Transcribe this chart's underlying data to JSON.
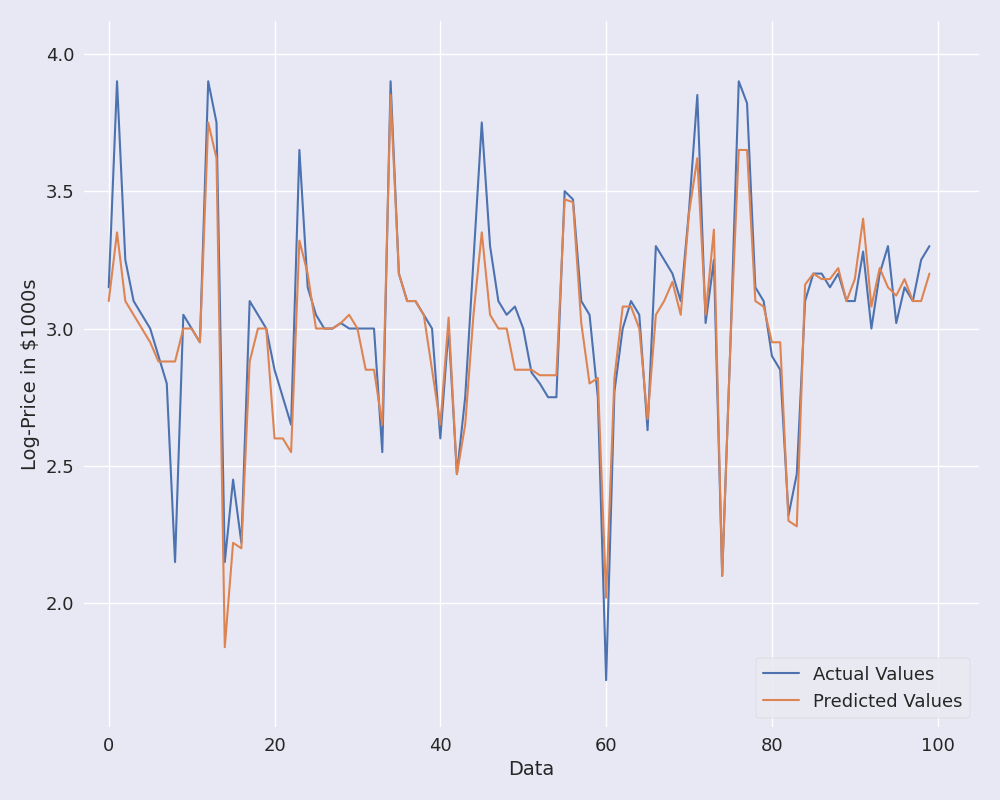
{
  "actual_values": [
    3.15,
    3.9,
    3.25,
    3.1,
    3.05,
    3.0,
    2.9,
    2.8,
    2.15,
    3.05,
    3.0,
    2.95,
    3.9,
    3.75,
    2.15,
    2.45,
    2.22,
    3.1,
    3.05,
    3.0,
    2.85,
    2.75,
    2.65,
    3.65,
    3.15,
    3.05,
    3.0,
    3.0,
    3.02,
    3.0,
    3.0,
    3.0,
    3.0,
    2.55,
    3.9,
    3.2,
    3.1,
    3.1,
    3.05,
    3.0,
    2.6,
    3.0,
    2.47,
    2.75,
    3.25,
    3.75,
    3.3,
    3.1,
    3.05,
    3.08,
    3.0,
    2.84,
    2.8,
    2.75,
    2.75,
    3.5,
    3.47,
    3.1,
    3.05,
    2.75,
    1.72,
    2.77,
    3.0,
    3.1,
    3.05,
    2.63,
    3.3,
    3.25,
    3.2,
    3.1,
    3.43,
    3.85,
    3.02,
    3.25,
    2.1,
    2.95,
    3.9,
    3.82,
    3.15,
    3.1,
    2.9,
    2.85,
    2.32,
    2.47,
    3.1,
    3.2,
    3.2,
    3.15,
    3.2,
    3.1,
    3.1,
    3.28,
    3.0,
    3.2,
    3.3,
    3.02,
    3.15,
    3.1,
    3.25,
    3.3
  ],
  "predicted_values": [
    3.1,
    3.35,
    3.1,
    3.05,
    3.0,
    2.95,
    2.88,
    2.88,
    2.88,
    3.0,
    3.0,
    2.95,
    3.75,
    3.62,
    1.84,
    2.22,
    2.2,
    2.88,
    3.0,
    3.0,
    2.6,
    2.6,
    2.55,
    3.32,
    3.2,
    3.0,
    3.0,
    3.0,
    3.02,
    3.05,
    3.0,
    2.85,
    2.85,
    2.65,
    3.85,
    3.2,
    3.1,
    3.1,
    3.05,
    2.85,
    2.65,
    3.04,
    2.47,
    2.65,
    3.05,
    3.35,
    3.05,
    3.0,
    3.0,
    2.85,
    2.85,
    2.85,
    2.83,
    2.83,
    2.83,
    3.47,
    3.46,
    3.02,
    2.8,
    2.82,
    2.02,
    2.82,
    3.08,
    3.08,
    3.0,
    2.67,
    3.05,
    3.1,
    3.17,
    3.05,
    3.42,
    3.62,
    3.05,
    3.36,
    2.1,
    2.95,
    3.65,
    3.65,
    3.1,
    3.08,
    2.95,
    2.95,
    2.3,
    2.28,
    3.16,
    3.2,
    3.18,
    3.18,
    3.22,
    3.1,
    3.18,
    3.4,
    3.08,
    3.22,
    3.15,
    3.12,
    3.18,
    3.1,
    3.1,
    3.2
  ],
  "actual_color": "#4c72b0",
  "predicted_color": "#dd8452",
  "actual_label": "Actual Values",
  "predicted_label": "Predicted Values",
  "xlabel": "Data",
  "ylabel": "Log-Price in $1000s",
  "xlim": [
    -3,
    105
  ],
  "ylim": [
    1.55,
    4.12
  ],
  "yticks": [
    2.0,
    2.5,
    3.0,
    3.5,
    4.0
  ],
  "xticks": [
    0,
    20,
    40,
    60,
    80,
    100
  ],
  "linewidth": 1.5,
  "axes_bg_color": "#e8e8f4",
  "fig_bg_color": "#e8e8f4",
  "grid_color": "#ffffff",
  "legend_fontsize": 13,
  "axis_label_fontsize": 14,
  "tick_fontsize": 13
}
